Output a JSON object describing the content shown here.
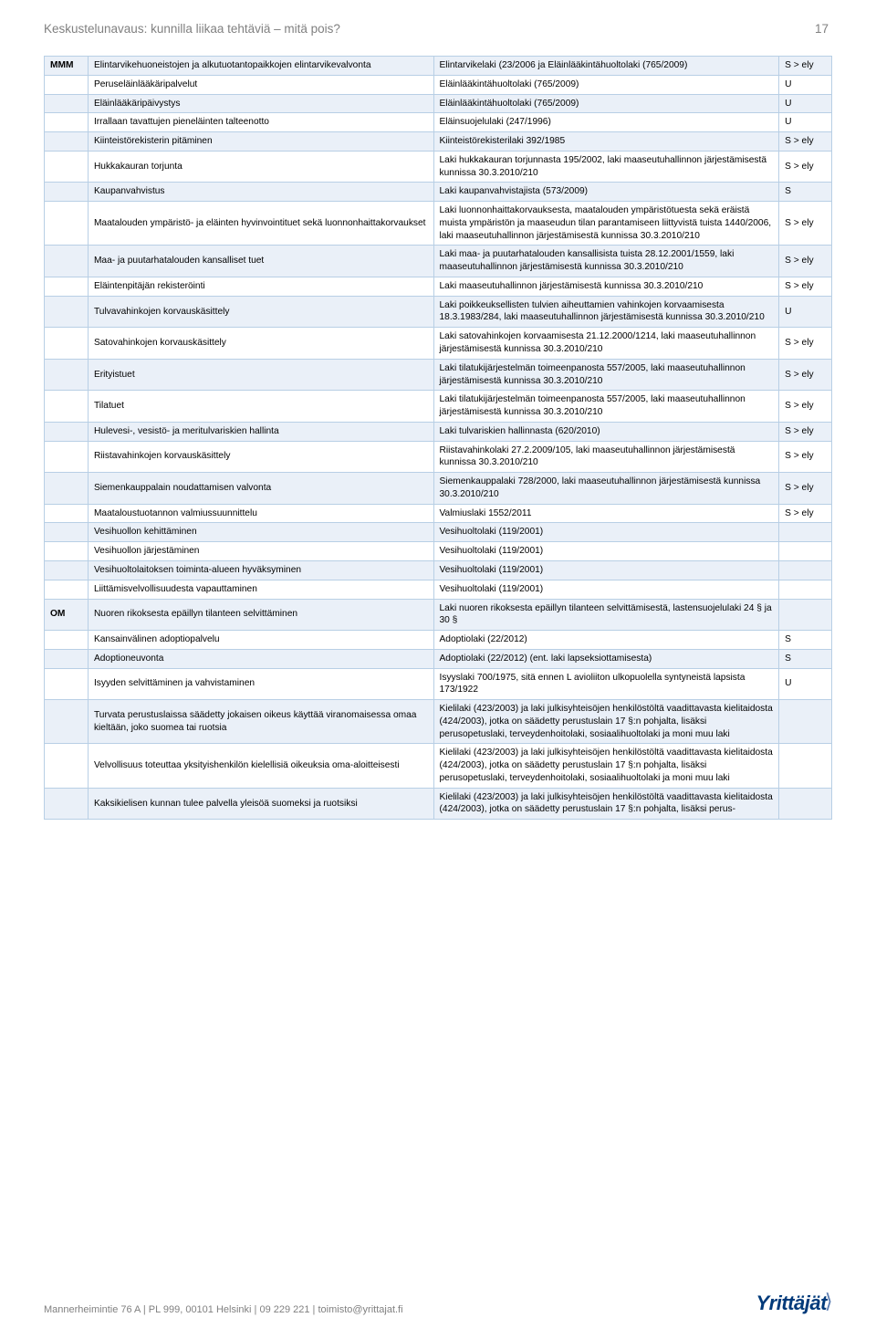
{
  "header": {
    "title": "Keskustelunavaus: kunnilla liikaa tehtäviä – mitä pois?",
    "page_number": "17"
  },
  "footer": {
    "text": "Mannerheimintie 76 A | PL 999, 00101 Helsinki | 09 229 221 | toimisto@yrittajat.fi",
    "logo": "Yrittäjät"
  },
  "columns": {
    "ministry": "MMM",
    "ministry2": "OM"
  },
  "rows": [
    {
      "m": "MMM",
      "a": "Elintarvikehuoneistojen ja alkutuotantopaikkojen elintarvikevalvonta",
      "b": "Elintarvikelaki (23/2006 ja Eläinlääkintähuoltolaki (765/2009)",
      "c": "S > ely",
      "shade": 1
    },
    {
      "m": "",
      "a": "Peruseläinlääkäripalvelut",
      "b": "Eläinlääkintähuoltolaki (765/2009)",
      "c": "U",
      "shade": 0
    },
    {
      "m": "",
      "a": "Eläinlääkäripäivystys",
      "b": "Eläinlääkintähuoltolaki (765/2009)",
      "c": "U",
      "shade": 1
    },
    {
      "m": "",
      "a": "Irrallaan tavattujen pieneläinten talteenotto",
      "b": "Eläinsuojelulaki (247/1996)",
      "c": "U",
      "shade": 0
    },
    {
      "m": "",
      "a": "Kiinteistörekisterin pitäminen",
      "b": "Kiinteistörekisterilaki 392/1985",
      "c": "S > ely",
      "shade": 1
    },
    {
      "m": "",
      "a": "Hukkakauran torjunta",
      "b": "Laki hukkakauran torjunnasta 195/2002, laki maaseutuhallinnon järjestämisestä kunnissa 30.3.2010/210",
      "c": "S > ely",
      "shade": 0
    },
    {
      "m": "",
      "a": "Kaupanvahvistus",
      "b": "Laki kaupanvahvistajista (573/2009)",
      "c": "S",
      "shade": 1
    },
    {
      "m": "",
      "a": "Maatalouden ympäristö- ja eläinten hyvinvointituet sekä luonnonhaittakorvaukset",
      "b": "Laki luonnonhaittakorvauksesta, maatalouden ympäristötuesta sekä eräistä muista ympäristön ja maaseudun tilan parantamiseen liittyvistä tuista 1440/2006, laki maaseutuhallinnon järjestämisestä kunnissa 30.3.2010/210",
      "c": "S > ely",
      "shade": 0
    },
    {
      "m": "",
      "a": "Maa- ja puutarhatalouden kansalliset tuet",
      "b": "Laki maa- ja puutarhatalouden kansallisista tuista 28.12.2001/1559, laki maaseutuhallinnon järjestämisestä kunnissa 30.3.2010/210",
      "c": "S > ely",
      "shade": 1
    },
    {
      "m": "",
      "a": "Eläintenpitäjän rekisteröinti",
      "b": "Laki maaseutuhallinnon järjestämisestä kunnissa 30.3.2010/210",
      "c": "S > ely",
      "shade": 0
    },
    {
      "m": "",
      "a": "Tulvavahinkojen korvauskäsittely",
      "b": "Laki poikkeuksellisten tulvien aiheuttamien vahinkojen korvaamisesta 18.3.1983/284, laki maaseutuhallinnon järjestämisestä kunnissa 30.3.2010/210",
      "c": "U",
      "shade": 1
    },
    {
      "m": "",
      "a": "Satovahinkojen korvauskäsittely",
      "b": "Laki satovahinkojen korvaamisesta 21.12.2000/1214, laki maaseutuhallinnon järjestämisestä kunnissa 30.3.2010/210",
      "c": "S > ely",
      "shade": 0
    },
    {
      "m": "",
      "a": "Erityistuet",
      "b": "Laki tilatukijärjestelmän toimeenpanosta 557/2005, laki maaseutuhallinnon järjestämisestä kunnissa 30.3.2010/210",
      "c": "S > ely",
      "shade": 1
    },
    {
      "m": "",
      "a": "Tilatuet",
      "b": "Laki tilatukijärjestelmän toimeenpanosta 557/2005, laki maaseutuhallinnon järjestämisestä kunnissa 30.3.2010/210",
      "c": "S > ely",
      "shade": 0
    },
    {
      "m": "",
      "a": "Hulevesi-, vesistö- ja meritulvariskien hallinta",
      "b": "Laki tulvariskien hallinnasta (620/2010)",
      "c": "S > ely",
      "shade": 1
    },
    {
      "m": "",
      "a": "Riistavahinkojen korvauskäsittely",
      "b": "Riistavahinkolaki 27.2.2009/105, laki maaseutuhallinnon järjestämisestä kunnissa 30.3.2010/210",
      "c": "S > ely",
      "shade": 0
    },
    {
      "m": "",
      "a": "Siemenkauppalain noudattamisen valvonta",
      "b": "Siemenkauppalaki 728/2000, laki maaseutuhallinnon järjestämisestä kunnissa 30.3.2010/210",
      "c": "S > ely",
      "shade": 1
    },
    {
      "m": "",
      "a": "Maataloustuotannon valmiussuunnittelu",
      "b": "Valmiuslaki 1552/2011",
      "c": "S > ely",
      "shade": 0
    },
    {
      "m": "",
      "a": "Vesihuollon kehittäminen",
      "b": "Vesihuoltolaki (119/2001)",
      "c": "",
      "shade": 1
    },
    {
      "m": "",
      "a": "Vesihuollon järjestäminen",
      "b": "Vesihuoltolaki (119/2001)",
      "c": "",
      "shade": 0
    },
    {
      "m": "",
      "a": "Vesihuoltolaitoksen toiminta-alueen hyväksyminen",
      "b": "Vesihuoltolaki (119/2001)",
      "c": "",
      "shade": 1
    },
    {
      "m": "",
      "a": "Liittämisvelvollisuudesta vapauttaminen",
      "b": "Vesihuoltolaki (119/2001)",
      "c": "",
      "shade": 0
    },
    {
      "m": "OM",
      "a": "Nuoren rikoksesta epäillyn tilanteen selvittäminen",
      "b": "Laki nuoren rikoksesta epäillyn tilanteen selvittämisestä, lastensuojelulaki 24 § ja 30 §",
      "c": "",
      "shade": 1
    },
    {
      "m": "",
      "a": "Kansainvälinen adoptiopalvelu",
      "b": "Adoptiolaki (22/2012)",
      "c": "S",
      "shade": 0
    },
    {
      "m": "",
      "a": "Adoptioneuvonta",
      "b": "Adoptiolaki (22/2012) (ent. laki lapseksiottamisesta)",
      "c": "S",
      "shade": 1
    },
    {
      "m": "",
      "a": "Isyyden selvittäminen ja vahvistaminen",
      "b": "Isyyslaki 700/1975, sitä ennen L avioliiton ulkopuolella syntyneistä lapsista 173/1922",
      "c": "U",
      "shade": 0
    },
    {
      "m": "",
      "a": "Turvata perustuslaissa säädetty jokaisen oikeus käyttää viranomaisessa omaa kieltään, joko suomea tai ruotsia",
      "b": "Kielilaki (423/2003) ja laki julkisyhteisöjen henkilöstöltä vaadittavasta kielitaidosta (424/2003), jotka on säädetty perustuslain 17 §:n pohjalta, lisäksi perusopetuslaki, terveydenhoitolaki, sosiaalihuoltolaki ja moni muu laki",
      "c": "",
      "shade": 1
    },
    {
      "m": "",
      "a": "Velvollisuus toteuttaa yksityishenkilön kielellisiä oikeuksia oma-aloitteisesti",
      "b": "Kielilaki (423/2003) ja laki julkisyhteisöjen henkilöstöltä vaadittavasta kielitaidosta (424/2003), jotka on säädetty perustuslain 17 §:n pohjalta, lisäksi perusopetuslaki, terveydenhoitolaki, sosiaalihuoltolaki ja moni muu laki",
      "c": "",
      "shade": 0
    },
    {
      "m": "",
      "a": "Kaksikielisen kunnan tulee palvella yleisöä suomeksi ja ruotsiksi",
      "b": "Kielilaki (423/2003) ja laki julkisyhteisöjen henkilöstöltä vaadittavasta kielitaidosta (424/2003), jotka on säädetty perustuslain 17 §:n pohjalta, lisäksi perus-",
      "c": "",
      "shade": 1
    }
  ]
}
